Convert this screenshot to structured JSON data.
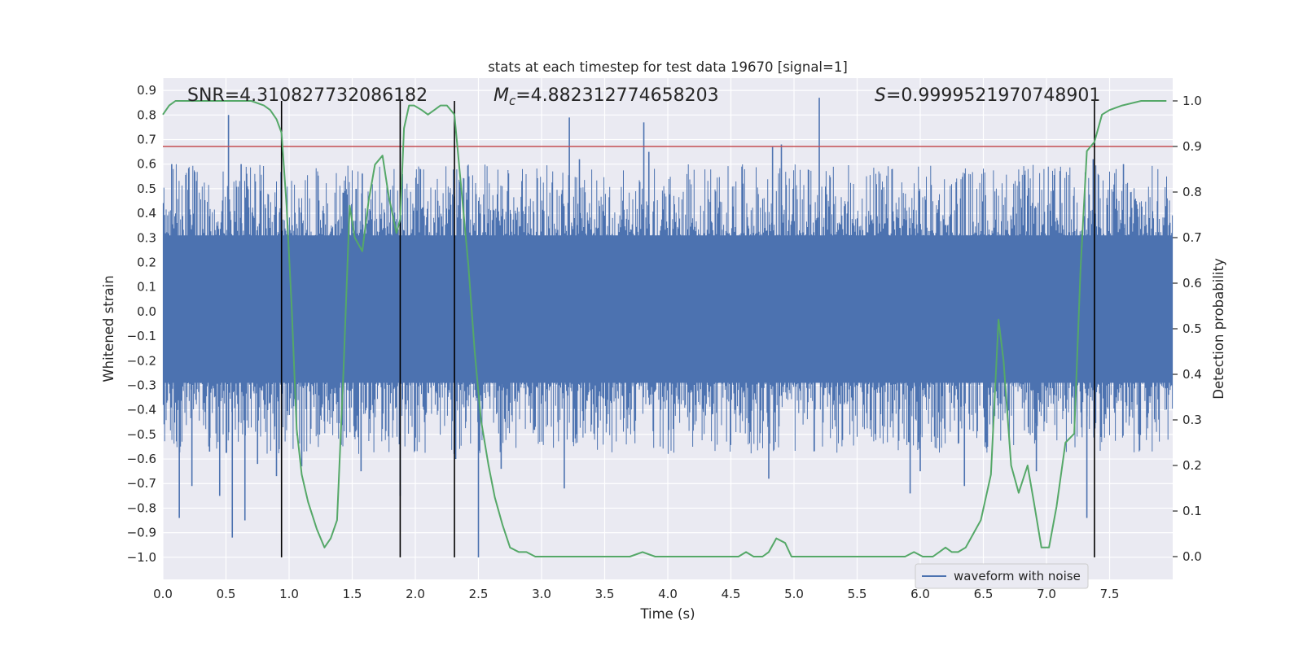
{
  "chart_data": {
    "type": "line",
    "title": "stats at each timestep for test data 19670 [signal=1]",
    "xlabel": "Time (s)",
    "ylabel": "Whitened strain",
    "ylabel_right": "Detection probability",
    "xlim": [
      0.0,
      8.0
    ],
    "ylim": [
      -1.09,
      0.95
    ],
    "ylim_right": [
      -0.05,
      1.05
    ],
    "x_ticks": [
      "0.0",
      "0.5",
      "1.0",
      "1.5",
      "2.0",
      "2.5",
      "3.0",
      "3.5",
      "4.0",
      "4.5",
      "5.0",
      "5.5",
      "6.0",
      "6.5",
      "7.0",
      "7.5"
    ],
    "y_ticks": [
      "0.9",
      "0.8",
      "0.7",
      "0.6",
      "0.5",
      "0.4",
      "0.3",
      "0.2",
      "0.1",
      "0.0",
      "-0.1",
      "-0.2",
      "-0.3",
      "-0.4",
      "-0.5",
      "-0.6",
      "-0.7",
      "-0.8",
      "-0.9",
      "-1.0"
    ],
    "y_ticks_right": [
      "1.0",
      "0.9",
      "0.8",
      "0.7",
      "0.6",
      "0.5",
      "0.4",
      "0.3",
      "0.2",
      "0.1",
      "0.0"
    ],
    "annotations": {
      "snr": "SNR=4.310827732086182",
      "mc_symbol": "M",
      "mc_sub": "c",
      "mc_value": "=4.882312774658203",
      "s_symbol": "S",
      "s_value": "=0.9999521970748901"
    },
    "legend": {
      "label": "waveform with noise",
      "position": "lower right"
    },
    "threshold": {
      "value": 0.9,
      "color": "#c44e52"
    },
    "vertical_markers": [
      0.94,
      1.88,
      2.31,
      7.38
    ],
    "vertical_marker_range": [
      -1.0,
      1.0
    ],
    "waveform": {
      "name": "waveform with noise",
      "color": "#4c72b0",
      "core_band": [
        -0.29,
        0.31
      ],
      "spikes": [
        {
          "t": 0.07,
          "v": 0.6
        },
        {
          "t": 0.13,
          "v": -0.84
        },
        {
          "t": 0.23,
          "v": -0.71
        },
        {
          "t": 0.37,
          "v": -0.57
        },
        {
          "t": 0.45,
          "v": -0.75
        },
        {
          "t": 0.52,
          "v": 0.8
        },
        {
          "t": 0.55,
          "v": -0.92
        },
        {
          "t": 0.62,
          "v": 0.6
        },
        {
          "t": 0.65,
          "v": -0.85
        },
        {
          "t": 0.75,
          "v": -0.62
        },
        {
          "t": 0.9,
          "v": -0.67
        },
        {
          "t": 1.1,
          "v": -0.63
        },
        {
          "t": 1.57,
          "v": -0.65
        },
        {
          "t": 1.58,
          "v": 0.56
        },
        {
          "t": 1.88,
          "v": -0.75
        },
        {
          "t": 2.02,
          "v": 0.52
        },
        {
          "t": 2.32,
          "v": -0.6
        },
        {
          "t": 2.5,
          "v": -1.0
        },
        {
          "t": 2.68,
          "v": -0.64
        },
        {
          "t": 3.18,
          "v": -0.72
        },
        {
          "t": 3.22,
          "v": 0.79
        },
        {
          "t": 3.3,
          "v": 0.62
        },
        {
          "t": 3.81,
          "v": 0.77
        },
        {
          "t": 3.85,
          "v": 0.65
        },
        {
          "t": 4.8,
          "v": -0.68
        },
        {
          "t": 4.83,
          "v": 0.67
        },
        {
          "t": 4.9,
          "v": 0.68
        },
        {
          "t": 5.2,
          "v": 0.87
        },
        {
          "t": 5.92,
          "v": -0.74
        },
        {
          "t": 6.0,
          "v": -0.65
        },
        {
          "t": 6.35,
          "v": -0.71
        },
        {
          "t": 6.92,
          "v": -0.65
        },
        {
          "t": 7.32,
          "v": -0.84
        },
        {
          "t": 7.37,
          "v": 0.62
        },
        {
          "t": 7.61,
          "v": 0.6
        }
      ]
    },
    "probability": {
      "name": "Detection probability",
      "color": "#55a868",
      "x": [
        0.0,
        0.05,
        0.1,
        0.15,
        0.2,
        0.3,
        0.4,
        0.5,
        0.6,
        0.7,
        0.8,
        0.85,
        0.9,
        0.94,
        0.98,
        1.02,
        1.06,
        1.1,
        1.15,
        1.22,
        1.28,
        1.33,
        1.38,
        1.43,
        1.48,
        1.52,
        1.58,
        1.63,
        1.68,
        1.74,
        1.79,
        1.85,
        1.88,
        1.91,
        1.95,
        1.99,
        2.05,
        2.1,
        2.15,
        2.2,
        2.25,
        2.31,
        2.36,
        2.42,
        2.47,
        2.52,
        2.58,
        2.63,
        2.69,
        2.75,
        2.82,
        2.88,
        2.95,
        3.0,
        3.2,
        3.4,
        3.55,
        3.7,
        3.8,
        3.9,
        4.0,
        4.15,
        4.3,
        4.5,
        4.56,
        4.62,
        4.68,
        4.75,
        4.8,
        4.86,
        4.93,
        4.98,
        5.05,
        5.2,
        5.4,
        5.6,
        5.8,
        5.88,
        5.95,
        6.02,
        6.1,
        6.15,
        6.2,
        6.25,
        6.3,
        6.36,
        6.42,
        6.48,
        6.56,
        6.62,
        6.66,
        6.72,
        6.78,
        6.85,
        6.9,
        6.96,
        7.02,
        7.08,
        7.15,
        7.22,
        7.27,
        7.32,
        7.38,
        7.44,
        7.5,
        7.6,
        7.75,
        7.85,
        7.95
      ],
      "y": [
        0.97,
        0.99,
        1.0,
        1.0,
        1.0,
        1.0,
        1.0,
        1.0,
        1.0,
        1.0,
        0.99,
        0.98,
        0.96,
        0.93,
        0.77,
        0.55,
        0.28,
        0.18,
        0.12,
        0.06,
        0.02,
        0.04,
        0.08,
        0.4,
        0.77,
        0.7,
        0.67,
        0.78,
        0.86,
        0.88,
        0.79,
        0.71,
        0.74,
        0.94,
        0.99,
        0.99,
        0.98,
        0.97,
        0.98,
        0.99,
        0.99,
        0.97,
        0.82,
        0.64,
        0.45,
        0.3,
        0.2,
        0.13,
        0.07,
        0.02,
        0.01,
        0.01,
        0.0,
        0.0,
        0.0,
        0.0,
        0.0,
        0.0,
        0.01,
        0.0,
        0.0,
        0.0,
        0.0,
        0.0,
        0.0,
        0.01,
        0.0,
        0.0,
        0.01,
        0.04,
        0.03,
        0.0,
        0.0,
        0.0,
        0.0,
        0.0,
        0.0,
        0.0,
        0.01,
        0.0,
        0.0,
        0.01,
        0.02,
        0.01,
        0.01,
        0.02,
        0.05,
        0.08,
        0.18,
        0.52,
        0.43,
        0.2,
        0.14,
        0.2,
        0.12,
        0.02,
        0.02,
        0.11,
        0.25,
        0.27,
        0.63,
        0.89,
        0.91,
        0.97,
        0.98,
        0.99,
        1.0,
        1.0,
        1.0
      ]
    }
  }
}
